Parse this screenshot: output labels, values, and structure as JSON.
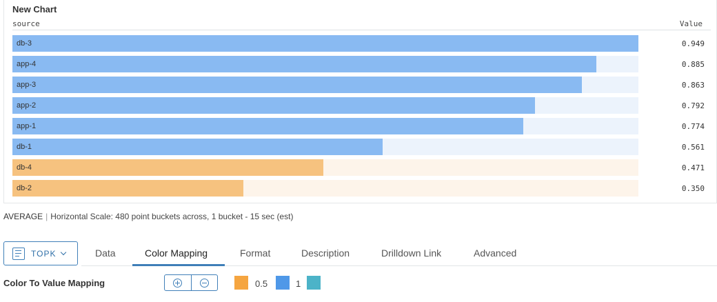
{
  "chart": {
    "title": "New Chart",
    "source_header": "source",
    "value_header": "Value"
  },
  "chart_data": {
    "type": "bar",
    "orientation": "horizontal",
    "title": "New Chart",
    "xlim": [
      0,
      0.949
    ],
    "categories": [
      "db-3",
      "app-4",
      "app-3",
      "app-2",
      "app-1",
      "db-1",
      "db-4",
      "db-2"
    ],
    "values": [
      0.949,
      0.885,
      0.863,
      0.792,
      0.774,
      0.561,
      0.471,
      0.35
    ],
    "value_labels": [
      "0.949",
      "0.885",
      "0.863",
      "0.792",
      "0.774",
      "0.561",
      "0.471",
      "0.350"
    ],
    "colors": {
      "high": "#89baf2",
      "high_track": "#ecf3fc",
      "low": "#f6c27f",
      "low_track": "#fdf4ea"
    },
    "color_threshold": 0.5
  },
  "info": {
    "aggregation": "AVERAGE",
    "separator": "|",
    "scale_text": "Horizontal Scale: 480 point buckets across, 1 bucket - 15 sec (est)"
  },
  "toolbar": {
    "topk_label": "TOPK",
    "tabs": [
      "Data",
      "Color Mapping",
      "Format",
      "Description",
      "Drilldown Link",
      "Advanced"
    ],
    "active_tab": "Color Mapping"
  },
  "color_mapping": {
    "label": "Color To Value Mapping",
    "stops": [
      {
        "color": "#f5a540",
        "value": "0.5"
      },
      {
        "color": "#4f98e8",
        "value": "1"
      },
      {
        "color": "#4cb3c8",
        "value": ""
      }
    ]
  }
}
